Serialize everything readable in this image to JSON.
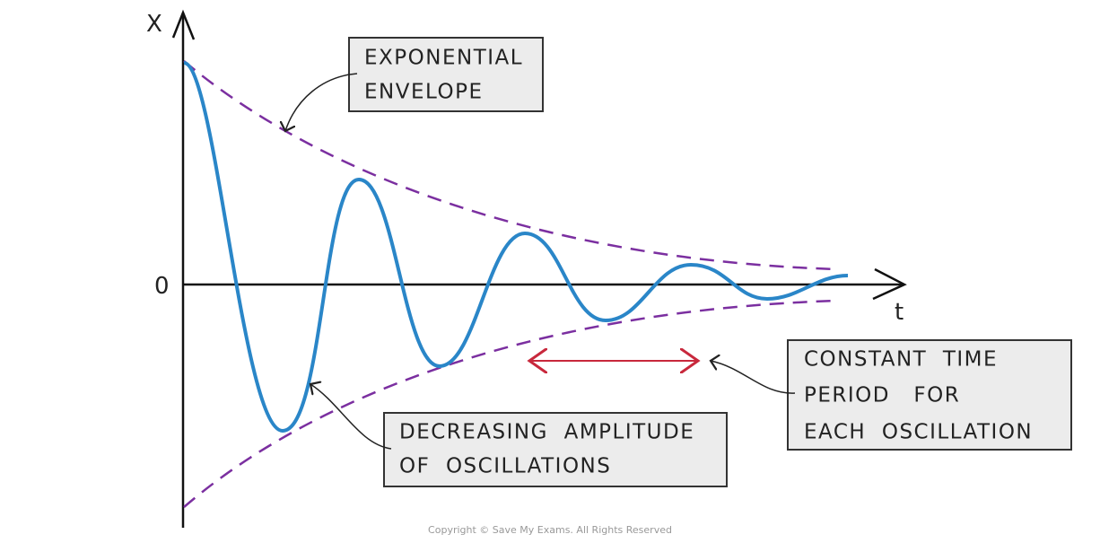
{
  "axes": {
    "y_label": "X",
    "origin_label": "0",
    "x_label": "t"
  },
  "callouts": [
    {
      "lines": [
        "EXPONENTIAL",
        "ENVELOPE"
      ]
    },
    {
      "lines": [
        "DECREASING  AMPLITUDE",
        "OF  OSCILLATIONS"
      ]
    },
    {
      "lines": [
        "CONSTANT  TIME",
        "PERIOD   FOR",
        "EACH  OSCILLATION"
      ]
    }
  ],
  "copyright": "Copyright © Save My Exams. All Rights Reserved"
}
